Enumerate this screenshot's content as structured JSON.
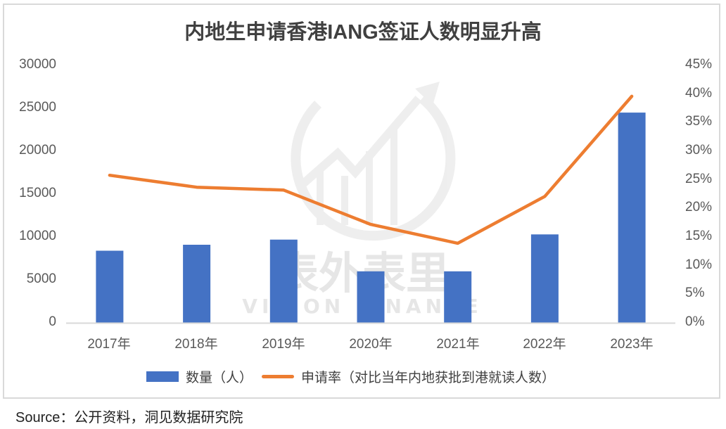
{
  "title": "内地生申请香港IANG签证人数明显升高",
  "left_axis": {
    "ticks": [
      "30000",
      "25000",
      "20000",
      "15000",
      "10000",
      "5000",
      "0"
    ]
  },
  "right_axis": {
    "ticks": [
      "45%",
      "40%",
      "35%",
      "30%",
      "25%",
      "20%",
      "15%",
      "10%",
      "5%",
      "0%"
    ]
  },
  "categories": [
    "2017年",
    "2018年",
    "2019年",
    "2020年",
    "2021年",
    "2022年",
    "2023年"
  ],
  "legend": {
    "bar_label": "数量（人）",
    "line_label": "申请率（对比当年内地获批到港就读人数）"
  },
  "watermark": {
    "cn": "表外表里",
    "en": "VISION FINANCE"
  },
  "source": "Source：公开资料，洞见数据研究院",
  "colors": {
    "bar": "#4472c4",
    "line": "#ed7d31",
    "axis": "#d9d9d9",
    "text": "#595959"
  },
  "chart_data": {
    "type": "bar+line",
    "title": "内地生申请香港IANG签证人数明显升高",
    "categories": [
      "2017年",
      "2018年",
      "2019年",
      "2020年",
      "2021年",
      "2022年",
      "2023年"
    ],
    "series": [
      {
        "name": "数量（人）",
        "type": "bar",
        "axis": "left",
        "values": [
          8400,
          9100,
          9700,
          6000,
          6000,
          10300,
          24500
        ]
      },
      {
        "name": "申请率（对比当年内地获批到港就读人数）",
        "type": "line",
        "axis": "right",
        "unit": "%",
        "values": [
          25.8,
          23.7,
          23.2,
          17.2,
          13.9,
          22.1,
          39.6
        ]
      }
    ],
    "xlabel": "",
    "ylabel_left": "",
    "ylabel_right": "",
    "ylim_left": [
      0,
      30000
    ],
    "ylim_right": [
      0,
      45
    ],
    "grid": false,
    "legend_position": "bottom"
  }
}
